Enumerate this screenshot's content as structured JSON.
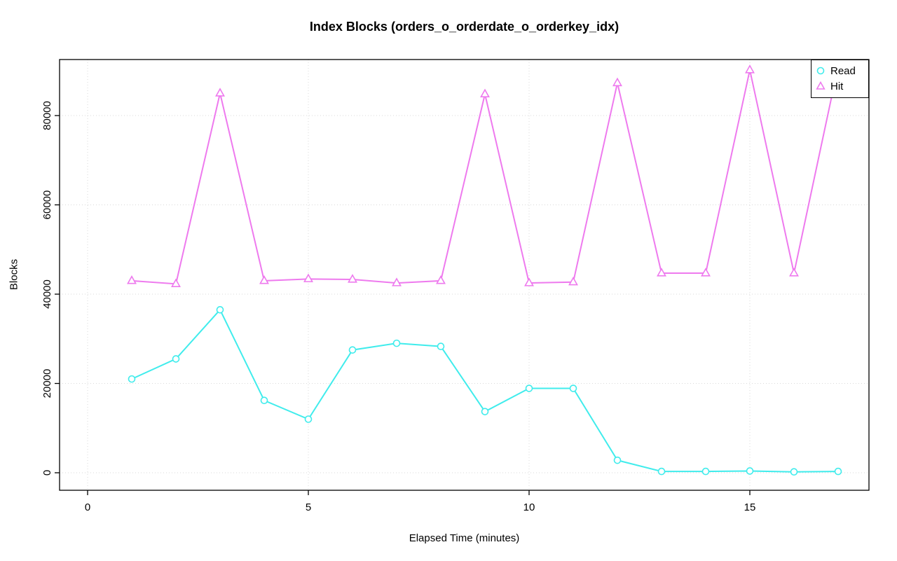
{
  "chart_data": {
    "type": "line",
    "title": "Index Blocks (orders_o_orderdate_o_orderkey_idx)",
    "xlabel": "Elapsed Time (minutes)",
    "ylabel": "Blocks",
    "x": [
      1,
      2,
      3,
      4,
      5,
      6,
      7,
      8,
      9,
      10,
      11,
      12,
      13,
      14,
      15,
      16,
      17
    ],
    "series": [
      {
        "name": "Read",
        "marker": "circle",
        "color": "#40ECEC",
        "values": [
          21000,
          25500,
          36500,
          16200,
          12000,
          27500,
          29000,
          28300,
          13700,
          18900,
          18900,
          2800,
          300,
          300,
          400,
          200,
          300
        ]
      },
      {
        "name": "Hit",
        "marker": "triangle",
        "color": "#EE7AEE",
        "values": [
          43000,
          42300,
          85000,
          43000,
          43400,
          43300,
          42500,
          43000,
          84800,
          42500,
          42700,
          87300,
          44700,
          44700,
          90200,
          44700,
          91000
        ]
      }
    ],
    "xticks": [
      0,
      5,
      10,
      15
    ],
    "yticks": [
      0,
      20000,
      40000,
      60000,
      80000
    ],
    "xlim": [
      -0.63,
      17.7
    ],
    "ylim": [
      0,
      92500
    ],
    "grid": true,
    "grid_color": "#D9D9D9",
    "axis_color": "#000000",
    "legend_position": "top-right"
  }
}
